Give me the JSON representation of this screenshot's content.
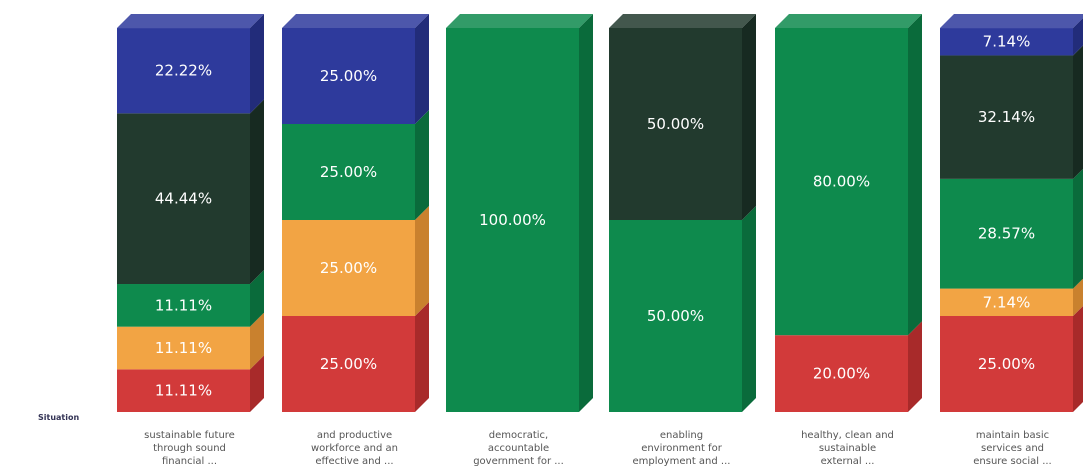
{
  "chart_data": {
    "type": "bar",
    "stacked": true,
    "percent": true,
    "three_d": true,
    "grid": false,
    "legend": "none",
    "ylim": [
      0,
      100
    ],
    "y_axis_label": "Situation",
    "categories": [
      [
        "sustainable future",
        "through sound",
        "financial ..."
      ],
      [
        "and productive",
        "workforce and an",
        "effective and ..."
      ],
      [
        "democratic,",
        "accountable",
        "government for ..."
      ],
      [
        "enabling",
        "environment for",
        "employment and ..."
      ],
      [
        "healthy, clean and",
        "sustainable",
        "external ..."
      ],
      [
        "maintain basic",
        "services and",
        "ensure social ..."
      ]
    ],
    "series": [
      {
        "color": "#d23a3a",
        "side_color": "#a82a2a",
        "text_color": "#ffffff",
        "values": [
          11.11,
          25.0,
          0,
          0,
          20.0,
          25.0
        ],
        "labels": [
          "11.11%",
          "25.00%",
          "",
          "",
          "20.00%",
          "25.00%"
        ]
      },
      {
        "color": "#f2a444",
        "side_color": "#c9812e",
        "text_color": "#ffffff",
        "values": [
          11.11,
          25.0,
          0,
          0,
          0,
          7.14
        ],
        "labels": [
          "11.11%",
          "25.00%",
          "",
          "",
          "",
          "7.14%"
        ]
      },
      {
        "color": "#0e8a4d",
        "side_color": "#0a6b3b",
        "text_color": "#ffffff",
        "values": [
          11.11,
          25.0,
          100.0,
          50.0,
          80.0,
          28.57
        ],
        "labels": [
          "11.11%",
          "25.00%",
          "100.00%",
          "50.00%",
          "80.00%",
          "28.57%"
        ]
      },
      {
        "color": "#223a2e",
        "side_color": "#172a21",
        "text_color": "#ffffff",
        "values": [
          44.44,
          0,
          0,
          50.0,
          0,
          32.14
        ],
        "labels": [
          "44.44%",
          "",
          "",
          "50.00%",
          "",
          "32.14%"
        ]
      },
      {
        "color": "#2e3a9c",
        "side_color": "#222c7a",
        "text_color": "#ffffff",
        "values": [
          22.22,
          25.0,
          0,
          0,
          0,
          7.14
        ],
        "labels": [
          "22.22%",
          "25.00%",
          "",
          "",
          "",
          "7.14%"
        ]
      }
    ]
  }
}
